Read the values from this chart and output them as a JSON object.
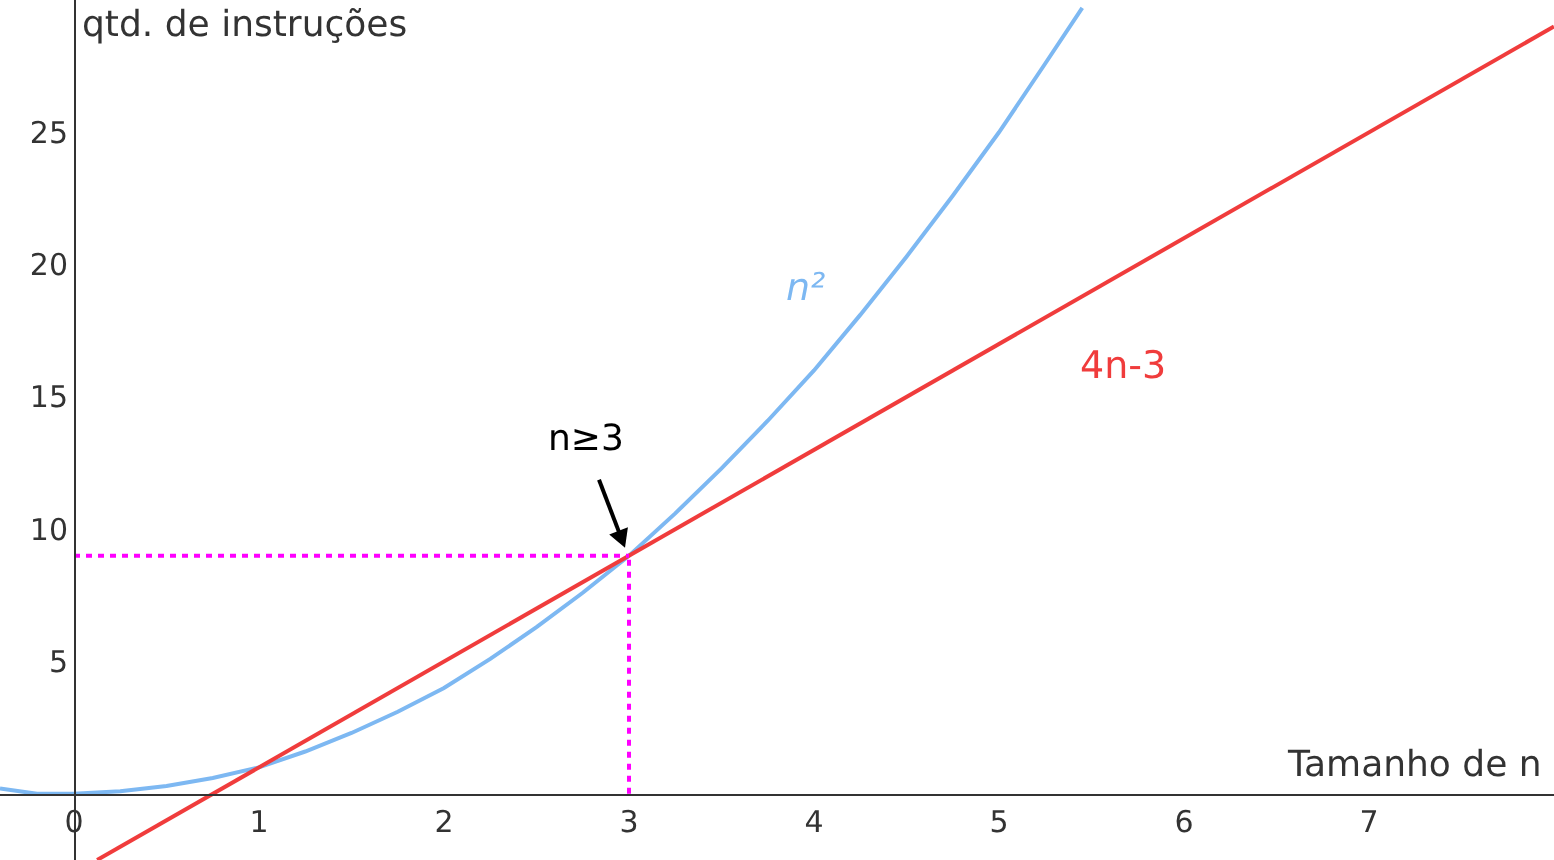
{
  "chart_data": {
    "type": "line",
    "xlabel": "Tamanho de n",
    "ylabel": "qtd. de instruções",
    "xlim": [
      -0.4,
      8
    ],
    "ylim": [
      -2.5,
      30
    ],
    "xticks": [
      0,
      1,
      2,
      3,
      4,
      5,
      6,
      7
    ],
    "yticks": [
      5,
      10,
      15,
      20,
      25
    ],
    "grid": false,
    "series": [
      {
        "name": "n²",
        "color": "#7db8f2",
        "x": [
          -0.4,
          -0.2,
          0,
          0.25,
          0.5,
          0.75,
          1,
          1.25,
          1.5,
          1.75,
          2,
          2.25,
          2.5,
          2.75,
          3,
          3.25,
          3.5,
          3.75,
          4,
          4.25,
          4.5,
          4.75,
          5,
          5.25,
          5.45
        ],
        "values": [
          0.2,
          0,
          0,
          0.1,
          0.3,
          0.6,
          1,
          1.6,
          2.3,
          3.1,
          4,
          5.1,
          6.3,
          7.6,
          9,
          10.6,
          12.3,
          14.1,
          16,
          18.1,
          20.3,
          22.6,
          25,
          27.6,
          29.7
        ]
      },
      {
        "name": "4n-3",
        "color": "#f03c3c",
        "x": [
          0.125,
          8
        ],
        "values": [
          -2.5,
          29
        ]
      },
      {
        "color": "#ff00ff",
        "line_style": "dotted",
        "x": [
          0,
          3
        ],
        "values": [
          9,
          9
        ]
      },
      {
        "color": "#ff00ff",
        "line_style": "dotted",
        "x": [
          3,
          3
        ],
        "values": [
          0,
          9
        ]
      }
    ],
    "annotations": [
      {
        "text": "n≥3",
        "x": 3,
        "y": 9
      }
    ]
  }
}
